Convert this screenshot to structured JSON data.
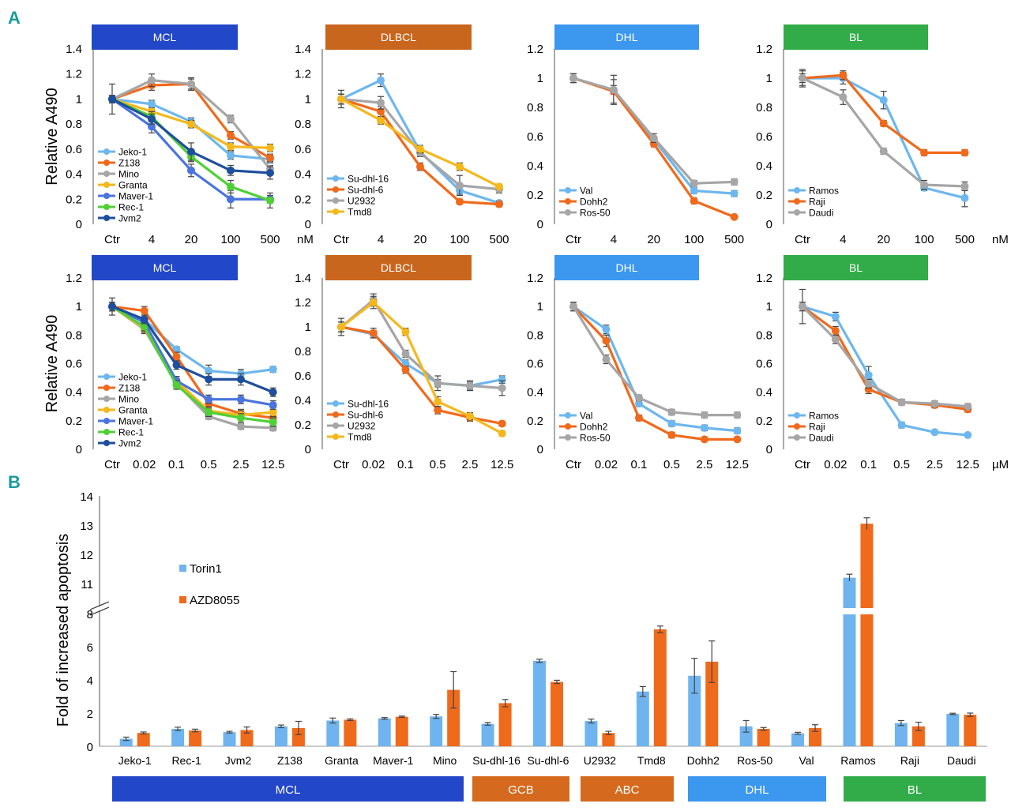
{
  "panel_labels": {
    "a": "A",
    "b": "B"
  },
  "colors": {
    "MCL": "#2347c9",
    "DLBCL": "#c8661d",
    "DHL": "#3c97ef",
    "BL": "#32ac48",
    "GCB": "#d56a1f",
    "ABC": "#d56a1f",
    "Torin1": "#6fb4ee",
    "AZD8055": "#f06a1c"
  },
  "chart_data": [
    {
      "type": "line",
      "id": "top-mcl",
      "group": "MCL",
      "categories": [
        "Ctr",
        "4",
        "20",
        "100",
        "500"
      ],
      "unit": "nM",
      "ylabel": "Relative A490",
      "ylim": [
        0,
        1.4
      ],
      "yticks": [
        "0",
        "0.2",
        "0.4",
        "0.6",
        "0.8",
        "1",
        "1.2",
        "1.4"
      ],
      "series": [
        {
          "name": "Jeko-1",
          "color": "#6db7ee",
          "values": [
            1.0,
            0.96,
            0.82,
            0.55,
            0.52
          ],
          "err": [
            0.03,
            0.03,
            0.03,
            0.03,
            0.03
          ]
        },
        {
          "name": "Z138",
          "color": "#f06a1c",
          "values": [
            1.0,
            1.11,
            1.12,
            0.71,
            0.53
          ],
          "err": [
            0.03,
            0.04,
            0.05,
            0.03,
            0.03
          ]
        },
        {
          "name": "Mino",
          "color": "#a6a6a6",
          "values": [
            1.0,
            1.15,
            1.12,
            0.84,
            0.44
          ],
          "err": [
            0.03,
            0.05,
            0.04,
            0.03,
            0.03
          ]
        },
        {
          "name": "Granta",
          "color": "#f5b81c",
          "values": [
            1.0,
            0.9,
            0.8,
            0.62,
            0.61
          ],
          "err": [
            0.03,
            0.03,
            0.03,
            0.03,
            0.03
          ]
        },
        {
          "name": "Maver-1",
          "color": "#4a74de",
          "values": [
            1.0,
            0.78,
            0.43,
            0.2,
            0.2
          ],
          "err": [
            0.03,
            0.05,
            0.05,
            0.07,
            0.03
          ]
        },
        {
          "name": "Rec-1",
          "color": "#4fd036",
          "values": [
            1.0,
            0.86,
            0.54,
            0.3,
            0.19
          ],
          "err": [
            0.03,
            0.04,
            0.04,
            0.05,
            0.06
          ]
        },
        {
          "name": "Jvm2",
          "color": "#1f4f9c",
          "values": [
            1.0,
            0.84,
            0.58,
            0.43,
            0.41
          ],
          "err": [
            0.12,
            0.04,
            0.07,
            0.04,
            0.05
          ]
        }
      ]
    },
    {
      "type": "line",
      "id": "top-dlbcl",
      "group": "DLBCL",
      "categories": [
        "Ctr",
        "4",
        "20",
        "100",
        "500"
      ],
      "unit": "",
      "ylim": [
        0,
        1.4
      ],
      "yticks": [
        "0",
        "0.2",
        "0.4",
        "0.6",
        "0.8",
        "1",
        "1.2",
        "1.4"
      ],
      "series": [
        {
          "name": "Su-dhl-16",
          "color": "#6db7ee",
          "values": [
            1.0,
            1.15,
            0.58,
            0.27,
            0.17
          ],
          "err": [
            0.04,
            0.05,
            0.03,
            0.03,
            0.02
          ]
        },
        {
          "name": "Su-dhl-6",
          "color": "#f06a1c",
          "values": [
            1.0,
            0.9,
            0.46,
            0.18,
            0.16
          ],
          "err": [
            0.04,
            0.04,
            0.03,
            0.02,
            0.02
          ]
        },
        {
          "name": "U2932",
          "color": "#a6a6a6",
          "values": [
            1.0,
            0.97,
            0.57,
            0.31,
            0.28
          ],
          "err": [
            0.07,
            0.05,
            0.03,
            0.08,
            0.03
          ]
        },
        {
          "name": "Tmd8",
          "color": "#f5b81c",
          "values": [
            1.0,
            0.83,
            0.6,
            0.46,
            0.3
          ],
          "err": [
            0.04,
            0.03,
            0.03,
            0.03,
            0.02
          ]
        }
      ]
    },
    {
      "type": "line",
      "id": "top-dhl",
      "group": "DHL",
      "categories": [
        "Ctr",
        "4",
        "20",
        "100",
        "500"
      ],
      "unit": "",
      "ylim": [
        0,
        1.2
      ],
      "yticks": [
        "0",
        "0.2",
        "0.4",
        "0.6",
        "0.8",
        "1",
        "1.2"
      ],
      "series": [
        {
          "name": "Val",
          "color": "#6db7ee",
          "values": [
            1.0,
            0.92,
            0.58,
            0.23,
            0.21
          ],
          "err": [
            0.03,
            0.03,
            0.02,
            0.02,
            0.02
          ]
        },
        {
          "name": "Dohh2",
          "color": "#f06a1c",
          "values": [
            1.0,
            0.91,
            0.55,
            0.16,
            0.05
          ],
          "err": [
            0.03,
            0.08,
            0.02,
            0.02,
            0.01
          ]
        },
        {
          "name": "Ros-50",
          "color": "#a6a6a6",
          "values": [
            1.0,
            0.92,
            0.59,
            0.28,
            0.29
          ],
          "err": [
            0.03,
            0.1,
            0.03,
            0.02,
            0.02
          ]
        }
      ]
    },
    {
      "type": "line",
      "id": "top-bl",
      "group": "BL",
      "categories": [
        "Ctr",
        "4",
        "20",
        "100",
        "500"
      ],
      "unit": "nM",
      "ylim": [
        0,
        1.2
      ],
      "yticks": [
        "0",
        "0.2",
        "0.4",
        "0.6",
        "0.8",
        "1",
        "1.2"
      ],
      "series": [
        {
          "name": "Ramos",
          "color": "#6db7ee",
          "values": [
            1.0,
            1.0,
            0.85,
            0.25,
            0.18
          ],
          "err": [
            0.05,
            0.04,
            0.06,
            0.02,
            0.06
          ]
        },
        {
          "name": "Raji",
          "color": "#f06a1c",
          "values": [
            1.0,
            1.02,
            0.69,
            0.49,
            0.49
          ],
          "err": [
            0.03,
            0.03,
            0.02,
            0.02,
            0.02
          ]
        },
        {
          "name": "Daudi",
          "color": "#a6a6a6",
          "values": [
            1.0,
            0.87,
            0.5,
            0.27,
            0.26
          ],
          "err": [
            0.06,
            0.05,
            0.02,
            0.03,
            0.03
          ]
        }
      ]
    },
    {
      "type": "line",
      "id": "bottom-mcl",
      "group": "MCL",
      "categories": [
        "Ctr",
        "0.02",
        "0.1",
        "0.5",
        "2.5",
        "12.5"
      ],
      "unit": "",
      "ylabel": "Relative A490",
      "ylim": [
        0,
        1.2
      ],
      "yticks": [
        "0",
        "0.2",
        "0.4",
        "0.6",
        "0.8",
        "1",
        "1.2"
      ],
      "series": [
        {
          "name": "Jeko-1",
          "color": "#6db7ee",
          "values": [
            1.0,
            0.91,
            0.7,
            0.55,
            0.53,
            0.56
          ],
          "err": [
            0.03,
            0.02,
            0.02,
            0.04,
            0.03,
            0.02
          ]
        },
        {
          "name": "Z138",
          "color": "#f06a1c",
          "values": [
            1.0,
            0.97,
            0.65,
            0.32,
            0.25,
            0.22
          ],
          "err": [
            0.03,
            0.03,
            0.03,
            0.03,
            0.03,
            0.03
          ]
        },
        {
          "name": "Mino",
          "color": "#a6a6a6",
          "values": [
            1.0,
            0.84,
            0.46,
            0.23,
            0.16,
            0.15
          ],
          "err": [
            0.03,
            0.03,
            0.03,
            0.02,
            0.02,
            0.02
          ]
        },
        {
          "name": "Granta",
          "color": "#f5b81c",
          "values": [
            1.0,
            0.85,
            0.48,
            0.27,
            0.24,
            0.26
          ],
          "err": [
            0.03,
            0.03,
            0.03,
            0.03,
            0.03,
            0.03
          ]
        },
        {
          "name": "Maver-1",
          "color": "#4a74de",
          "values": [
            1.0,
            0.89,
            0.48,
            0.35,
            0.35,
            0.31
          ],
          "err": [
            0.03,
            0.03,
            0.03,
            0.03,
            0.03,
            0.03
          ]
        },
        {
          "name": "Rec-1",
          "color": "#4fd036",
          "values": [
            1.0,
            0.86,
            0.45,
            0.26,
            0.22,
            0.19
          ],
          "err": [
            0.03,
            0.03,
            0.03,
            0.03,
            0.03,
            0.03
          ]
        },
        {
          "name": "Jvm2",
          "color": "#1f4f9c",
          "values": [
            1.0,
            0.91,
            0.59,
            0.49,
            0.49,
            0.4
          ],
          "err": [
            0.06,
            0.03,
            0.03,
            0.04,
            0.04,
            0.03
          ]
        }
      ]
    },
    {
      "type": "line",
      "id": "bottom-dlbcl",
      "group": "DLBCL",
      "categories": [
        "Ctr",
        "0.02",
        "0.1",
        "0.5",
        "2.5",
        "12.5"
      ],
      "unit": "",
      "ylim": [
        0,
        1.4
      ],
      "yticks": [
        "0",
        "0.2",
        "0.4",
        "0.6",
        "0.8",
        "1",
        "1.2",
        "1.4"
      ],
      "series": [
        {
          "name": "Su-dhl-16",
          "color": "#6db7ee",
          "values": [
            1.0,
            0.94,
            0.7,
            0.54,
            0.52,
            0.57
          ],
          "err": [
            0.04,
            0.03,
            0.03,
            0.03,
            0.03,
            0.03
          ]
        },
        {
          "name": "Su-dhl-6",
          "color": "#f06a1c",
          "values": [
            1.0,
            0.95,
            0.65,
            0.32,
            0.26,
            0.21
          ],
          "err": [
            0.04,
            0.04,
            0.03,
            0.03,
            0.03,
            0.02
          ]
        },
        {
          "name": "U2932",
          "color": "#a6a6a6",
          "values": [
            1.0,
            1.22,
            0.78,
            0.54,
            0.52,
            0.5
          ],
          "err": [
            0.07,
            0.05,
            0.03,
            0.06,
            0.04,
            0.06
          ]
        },
        {
          "name": "Tmd8",
          "color": "#f5b81c",
          "values": [
            1.0,
            1.2,
            0.96,
            0.39,
            0.27,
            0.13
          ],
          "err": [
            0.04,
            0.05,
            0.03,
            0.04,
            0.03,
            0.02
          ]
        }
      ]
    },
    {
      "type": "line",
      "id": "bottom-dhl",
      "group": "DHL",
      "categories": [
        "Ctr",
        "0.02",
        "0.1",
        "0.5",
        "2.5",
        "12.5"
      ],
      "unit": "",
      "ylim": [
        0,
        1.2
      ],
      "yticks": [
        "0",
        "0.2",
        "0.4",
        "0.6",
        "0.8",
        "1",
        "1.2"
      ],
      "series": [
        {
          "name": "Val",
          "color": "#6db7ee",
          "values": [
            1.0,
            0.84,
            0.32,
            0.18,
            0.15,
            0.13
          ],
          "err": [
            0.03,
            0.03,
            0.02,
            0.02,
            0.02,
            0.02
          ]
        },
        {
          "name": "Dohh2",
          "color": "#f06a1c",
          "values": [
            1.0,
            0.76,
            0.22,
            0.1,
            0.07,
            0.07
          ],
          "err": [
            0.03,
            0.04,
            0.02,
            0.02,
            0.01,
            0.01
          ]
        },
        {
          "name": "Ros-50",
          "color": "#a6a6a6",
          "values": [
            1.0,
            0.63,
            0.36,
            0.26,
            0.24,
            0.24
          ],
          "err": [
            0.03,
            0.03,
            0.02,
            0.02,
            0.02,
            0.02
          ]
        }
      ]
    },
    {
      "type": "line",
      "id": "bottom-bl",
      "group": "BL",
      "categories": [
        "Ctr",
        "0.02",
        "0.1",
        "0.5",
        "2.5",
        "12.5"
      ],
      "unit": "µM",
      "ylim": [
        0,
        1.2
      ],
      "yticks": [
        "0",
        "0.2",
        "0.4",
        "0.6",
        "0.8",
        "1",
        "1.2"
      ],
      "series": [
        {
          "name": "Ramos",
          "color": "#6db7ee",
          "values": [
            1.0,
            0.93,
            0.52,
            0.17,
            0.12,
            0.1
          ],
          "err": [
            0.03,
            0.03,
            0.06,
            0.02,
            0.01,
            0.01
          ]
        },
        {
          "name": "Raji",
          "color": "#f06a1c",
          "values": [
            1.0,
            0.83,
            0.42,
            0.33,
            0.31,
            0.28
          ],
          "err": [
            0.03,
            0.03,
            0.03,
            0.02,
            0.02,
            0.02
          ]
        },
        {
          "name": "Daudi",
          "color": "#a6a6a6",
          "values": [
            1.0,
            0.77,
            0.46,
            0.33,
            0.32,
            0.3
          ],
          "err": [
            0.12,
            0.03,
            0.03,
            0.02,
            0.02,
            0.02
          ]
        }
      ]
    },
    {
      "type": "bar",
      "id": "apoptosis",
      "ylabel": "Fold of increased apoptosis",
      "lower_yticks": [
        "0",
        "2",
        "4",
        "6",
        "8"
      ],
      "upper_yticks": [
        "11",
        "12",
        "13",
        "14"
      ],
      "axis_break": [
        8,
        11
      ],
      "categories": [
        "Jeko-1",
        "Rec-1",
        "Jvm2",
        "Z138",
        "Granta",
        "Maver-1",
        "Mino",
        "Su-dhl-16",
        "Su-dhl-6",
        "U2932",
        "Tmd8",
        "Dohh2",
        "Ros-50",
        "Val",
        "Ramos",
        "Raji",
        "Daudi"
      ],
      "series": [
        {
          "name": "Torin1",
          "color": "#6fb4ee",
          "values": [
            0.45,
            1.05,
            0.85,
            1.2,
            1.55,
            1.68,
            1.8,
            1.35,
            5.15,
            1.52,
            3.3,
            4.25,
            1.2,
            0.78,
            11.2,
            1.4,
            1.95
          ],
          "err": [
            0.1,
            0.1,
            0.05,
            0.08,
            0.15,
            0.05,
            0.12,
            0.08,
            0.1,
            0.12,
            0.3,
            1.05,
            0.35,
            0.06,
            0.12,
            0.15,
            0.04
          ]
        },
        {
          "name": "AZD8055",
          "color": "#f06a1c",
          "values": [
            0.8,
            0.95,
            0.98,
            1.1,
            1.6,
            1.78,
            3.4,
            2.6,
            3.88,
            0.8,
            7.05,
            5.1,
            1.05,
            1.1,
            13.05,
            1.2,
            1.9
          ],
          "err": [
            0.06,
            0.08,
            0.18,
            0.4,
            0.05,
            0.04,
            1.1,
            0.22,
            0.1,
            0.1,
            0.2,
            1.25,
            0.08,
            0.2,
            0.2,
            0.25,
            0.1
          ]
        }
      ],
      "groups": [
        {
          "name": "MCL",
          "color": "#2347c9"
        },
        {
          "name": "GCB",
          "color": "#d56a1f"
        },
        {
          "name": "ABC",
          "color": "#d56a1f"
        },
        {
          "name": "DHL",
          "color": "#3c97ef"
        },
        {
          "name": "BL",
          "color": "#32ac48"
        }
      ]
    }
  ]
}
